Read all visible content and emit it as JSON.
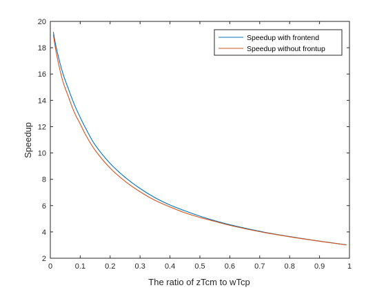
{
  "chart_data": {
    "type": "line",
    "title": "",
    "xlabel": "The ratio of zTcm to wTcp",
    "ylabel": "Speedup",
    "xlim": [
      0,
      1
    ],
    "ylim": [
      2,
      20
    ],
    "xticks": [
      "0",
      "0.1",
      "0.2",
      "0.3",
      "0.4",
      "0.5",
      "0.6",
      "0.7",
      "0.8",
      "0.9",
      "1"
    ],
    "yticks": [
      "2",
      "4",
      "6",
      "8",
      "10",
      "12",
      "14",
      "16",
      "18",
      "20"
    ],
    "grid": false,
    "legend_position": "top-right",
    "series": [
      {
        "name": "Speedup with frontend",
        "color": "#0072BD",
        "x": [
          0.01,
          0.02,
          0.04,
          0.06,
          0.08,
          0.1,
          0.12,
          0.15,
          0.2,
          0.25,
          0.3,
          0.35,
          0.4,
          0.45,
          0.5,
          0.55,
          0.6,
          0.7,
          0.8,
          0.9,
          0.99
        ],
        "y": [
          19.2,
          18.0,
          16.2,
          14.9,
          13.7,
          12.7,
          11.8,
          10.6,
          9.2,
          8.15,
          7.3,
          6.6,
          6.05,
          5.6,
          5.2,
          4.85,
          4.55,
          4.05,
          3.65,
          3.3,
          3.02
        ]
      },
      {
        "name": "Speedup without frontup",
        "color": "#D95319",
        "x": [
          0.01,
          0.02,
          0.04,
          0.06,
          0.08,
          0.1,
          0.12,
          0.15,
          0.2,
          0.25,
          0.3,
          0.35,
          0.4,
          0.45,
          0.5,
          0.55,
          0.6,
          0.7,
          0.8,
          0.9,
          0.99
        ],
        "y": [
          19.0,
          17.6,
          15.6,
          14.3,
          13.1,
          12.2,
          11.3,
          10.2,
          8.85,
          7.85,
          7.05,
          6.4,
          5.9,
          5.45,
          5.1,
          4.8,
          4.5,
          4.02,
          3.63,
          3.29,
          3.01
        ]
      }
    ]
  }
}
